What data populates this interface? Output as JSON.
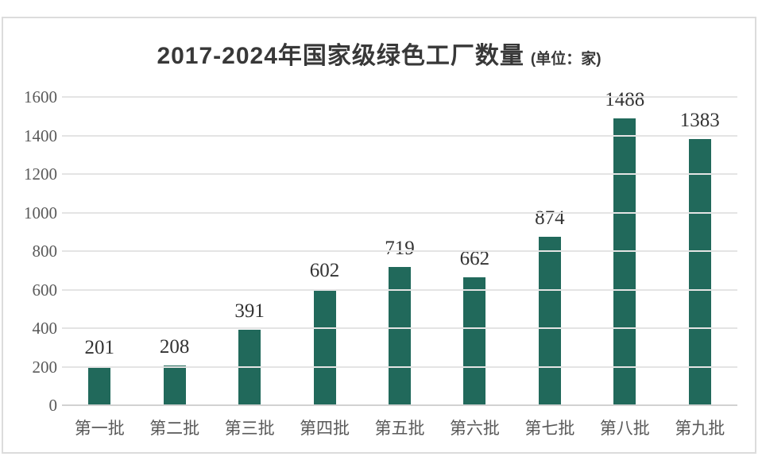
{
  "chart_data": {
    "type": "bar",
    "title": "2017-2024年国家级绿色工厂数量",
    "subtitle": "(单位：家)",
    "categories": [
      "第一批",
      "第二批",
      "第三批",
      "第四批",
      "第五批",
      "第六批",
      "第七批",
      "第八批",
      "第九批"
    ],
    "values": [
      201,
      208,
      391,
      602,
      719,
      662,
      874,
      1488,
      1383
    ],
    "xlabel": "",
    "ylabel": "",
    "ylim": [
      0,
      1600
    ],
    "ytick_step": 200,
    "grid": true,
    "legend": "none",
    "data_labels_shown": true,
    "colors": {
      "bar": "#21695b",
      "gridline": "#e4e4e4",
      "axis_line": "#d2d2d2",
      "tick_label": "#595959",
      "data_label": "#333333",
      "title": "#383838",
      "panel_border": "#dcdcdc",
      "background": "#ffffff"
    }
  }
}
